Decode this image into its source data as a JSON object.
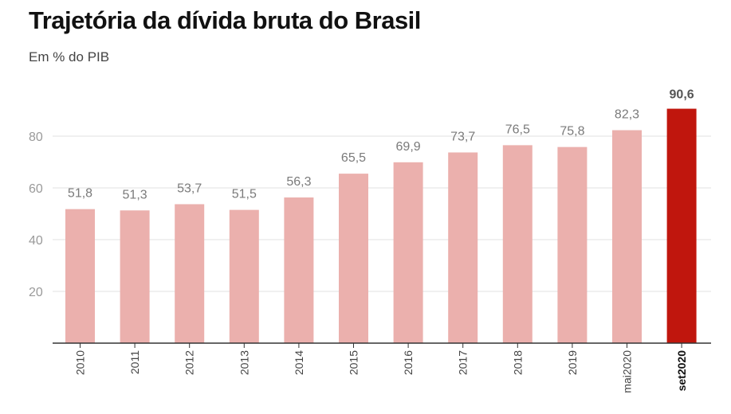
{
  "chart_data": {
    "type": "bar",
    "title": "Trajetória da dívida bruta do Brasil",
    "subtitle": "Em % do PIB",
    "xlabel": "",
    "ylabel": "",
    "ylim": [
      0,
      100
    ],
    "yticks": [
      20,
      40,
      60,
      80
    ],
    "grid": true,
    "categories": [
      "2010",
      "2011",
      "2012",
      "2013",
      "2014",
      "2015",
      "2016",
      "2017",
      "2018",
      "2019",
      "mai2020",
      "set2020"
    ],
    "values": [
      51.8,
      51.3,
      53.7,
      51.5,
      56.3,
      65.5,
      69.9,
      73.7,
      76.5,
      75.8,
      82.3,
      90.6
    ],
    "value_labels": [
      "51,8",
      "51,3",
      "53,7",
      "51,5",
      "56,3",
      "65,5",
      "69,9",
      "73,7",
      "76,5",
      "75,8",
      "82,3",
      "90,6"
    ],
    "highlight_index": 11,
    "colors": {
      "bar": "#ebb0ad",
      "highlight": "#c0160d",
      "grid": "#e2e2e2",
      "axis": "#333333"
    }
  }
}
